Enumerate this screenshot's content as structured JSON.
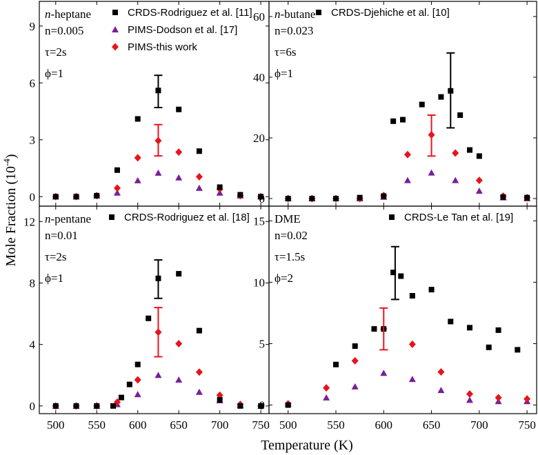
{
  "figure": {
    "xlabel": "Temperature (K)",
    "ylabel_main": "Mole Fraction (10",
    "ylabel_sup": "-4",
    "ylabel_end": ")"
  },
  "colors": {
    "crds": "#000000",
    "pims_dodson": "#7a1f9a",
    "pims_this": "#e8141b",
    "crds_err": "#000000",
    "this_err": "#e8141b"
  },
  "chart_data": [
    {
      "type": "scatter",
      "panel": "top-left",
      "annotations": {
        "fuel_italic": "n",
        "fuel_rest": "-heptane",
        "conc": "n=0.005",
        "tau": "τ=2s",
        "phi": "ϕ=1"
      },
      "xlim": [
        480,
        760
      ],
      "ylim": [
        -0.5,
        10.3
      ],
      "xticks": [
        500,
        550,
        600,
        650,
        700,
        750
      ],
      "yticks": [
        0,
        3,
        6,
        9
      ],
      "series": [
        {
          "name": "CRDS-Rodriguez et al. [11]",
          "marker": "square",
          "color": "#000000",
          "x": [
            500,
            525,
            550,
            575,
            600,
            625,
            650,
            675,
            700,
            725,
            750
          ],
          "y": [
            0.0,
            0.0,
            0.05,
            1.4,
            4.1,
            5.6,
            4.6,
            2.4,
            0.5,
            0.1,
            0.0
          ],
          "error": {
            "x": 625,
            "low": 4.7,
            "high": 6.4
          }
        },
        {
          "name": "PIMS-Dodson et al. [17]",
          "marker": "triangle",
          "color": "#7a1f9a",
          "x": [
            500,
            525,
            550,
            575,
            600,
            625,
            650,
            675,
            700,
            725,
            750
          ],
          "y": [
            0.0,
            0.0,
            0.05,
            0.2,
            0.85,
            1.25,
            1.0,
            0.45,
            0.2,
            0.05,
            0.0
          ]
        },
        {
          "name": "PIMS-this work",
          "marker": "diamond",
          "color": "#e8141b",
          "x": [
            500,
            525,
            550,
            575,
            600,
            625,
            650,
            675,
            700,
            725,
            750
          ],
          "y": [
            0.0,
            0.0,
            0.05,
            0.45,
            2.05,
            2.95,
            2.35,
            1.05,
            0.4,
            0.05,
            0.0
          ],
          "error": {
            "x": 625,
            "low": 2.15,
            "high": 3.8
          }
        }
      ]
    },
    {
      "type": "scatter",
      "panel": "top-right",
      "annotations": {
        "fuel_italic": "n",
        "fuel_rest": "-butane",
        "conc": "n=0.023",
        "tau": "τ=6s",
        "phi": "ϕ=1"
      },
      "xlim": [
        480,
        760
      ],
      "ylim": [
        -2.5,
        65
      ],
      "xticks": [
        500,
        550,
        600,
        650,
        700,
        750
      ],
      "yticks": [
        0,
        20,
        40,
        60
      ],
      "series": [
        {
          "name": "CRDS-Djehiche et al. [10]",
          "marker": "square",
          "color": "#000000",
          "x": [
            500,
            525,
            550,
            575,
            600,
            610,
            620,
            640,
            660,
            670,
            680,
            690,
            700,
            725,
            750
          ],
          "y": [
            0.0,
            0.0,
            0.0,
            0.3,
            0.8,
            25.5,
            26.0,
            31.0,
            33.5,
            35.5,
            27.5,
            16.0,
            14.0,
            0.5,
            0.3
          ],
          "error": {
            "x": 670,
            "low": 23.3,
            "high": 48.0
          }
        },
        {
          "marker": "triangle",
          "color": "#7a1f9a",
          "x": [
            500,
            525,
            550,
            575,
            600,
            625,
            650,
            675,
            700,
            725,
            750
          ],
          "y": [
            0.0,
            0.0,
            0.0,
            0.0,
            0.5,
            6.0,
            8.5,
            6.0,
            2.5,
            0.3,
            0.0
          ]
        },
        {
          "marker": "diamond",
          "color": "#e8141b",
          "x": [
            500,
            525,
            550,
            575,
            600,
            625,
            650,
            675,
            700,
            725,
            750
          ],
          "y": [
            0.0,
            0.0,
            0.0,
            0.0,
            1.0,
            14.5,
            21.0,
            15.0,
            6.0,
            0.8,
            0.3
          ],
          "error": {
            "x": 650,
            "low": 14.0,
            "high": 27.5
          }
        }
      ]
    },
    {
      "type": "scatter",
      "panel": "bottom-left",
      "annotations": {
        "fuel_italic": "n",
        "fuel_rest": "-pentane",
        "conc": "n=0.01",
        "tau": "τ=2s",
        "phi": "ϕ=1"
      },
      "xlim": [
        480,
        760
      ],
      "ylim": [
        -0.5,
        13.0
      ],
      "xticks": [
        500,
        550,
        600,
        650,
        700,
        750
      ],
      "yticks": [
        0,
        4,
        8,
        12
      ],
      "series": [
        {
          "name": "CRDS-Rodriguez et al. [18]",
          "marker": "square",
          "color": "#000000",
          "x": [
            500,
            525,
            550,
            570,
            580,
            590,
            600,
            613,
            625,
            650,
            675,
            700,
            725,
            750
          ],
          "y": [
            0.0,
            0.0,
            0.0,
            0.0,
            0.55,
            1.4,
            2.7,
            5.7,
            8.3,
            8.6,
            4.9,
            0.4,
            0.0,
            0.0
          ],
          "error": {
            "x": 625,
            "low": 7.0,
            "high": 9.5
          }
        },
        {
          "marker": "triangle",
          "color": "#7a1f9a",
          "x": [
            500,
            525,
            550,
            575,
            600,
            625,
            650,
            675,
            700,
            725,
            750
          ],
          "y": [
            0.0,
            0.0,
            0.0,
            0.1,
            0.75,
            2.0,
            1.7,
            0.9,
            0.35,
            0.05,
            0.0
          ]
        },
        {
          "marker": "diamond",
          "color": "#e8141b",
          "x": [
            500,
            525,
            550,
            575,
            600,
            625,
            650,
            675,
            700,
            725,
            750
          ],
          "y": [
            0.0,
            0.0,
            0.0,
            0.25,
            1.7,
            4.8,
            4.05,
            2.2,
            0.7,
            0.1,
            0.0
          ],
          "error": {
            "x": 625,
            "low": 3.2,
            "high": 6.4
          }
        }
      ]
    },
    {
      "type": "scatter",
      "panel": "bottom-right",
      "annotations": {
        "fuel_italic": "",
        "fuel_rest": "DME",
        "conc": "n=0.02",
        "tau": "τ=1.5s",
        "phi": "ϕ=2"
      },
      "xlim": [
        480,
        760
      ],
      "ylim": [
        -0.7,
        16.2
      ],
      "xticks": [
        500,
        550,
        600,
        650,
        700,
        750
      ],
      "yticks": [
        0,
        5,
        10,
        15
      ],
      "series": [
        {
          "name": "CRDS-Le Tan et al. [19]",
          "marker": "square",
          "color": "#000000",
          "x": [
            500,
            550,
            570,
            590,
            600,
            610,
            618,
            630,
            650,
            670,
            690,
            710,
            720,
            740
          ],
          "y": [
            0.0,
            3.3,
            4.8,
            6.2,
            6.2,
            10.8,
            10.5,
            8.9,
            9.4,
            6.8,
            6.3,
            4.7,
            6.1,
            4.5
          ],
          "error": {
            "x": 612,
            "low": 8.6,
            "high": 12.9
          }
        },
        {
          "marker": "triangle",
          "color": "#7a1f9a",
          "x": [
            500,
            540,
            570,
            600,
            630,
            660,
            690,
            720,
            750
          ],
          "y": [
            0.1,
            0.6,
            1.5,
            2.6,
            2.1,
            1.2,
            0.4,
            0.3,
            0.3
          ]
        },
        {
          "marker": "diamond",
          "color": "#e8141b",
          "x": [
            500,
            540,
            570,
            600,
            630,
            660,
            690,
            720,
            750
          ],
          "y": [
            0.1,
            1.4,
            3.6,
            6.2,
            4.95,
            2.7,
            0.9,
            0.6,
            0.5
          ],
          "error": {
            "x": 600,
            "low": 4.5,
            "high": 7.9
          }
        }
      ]
    }
  ]
}
